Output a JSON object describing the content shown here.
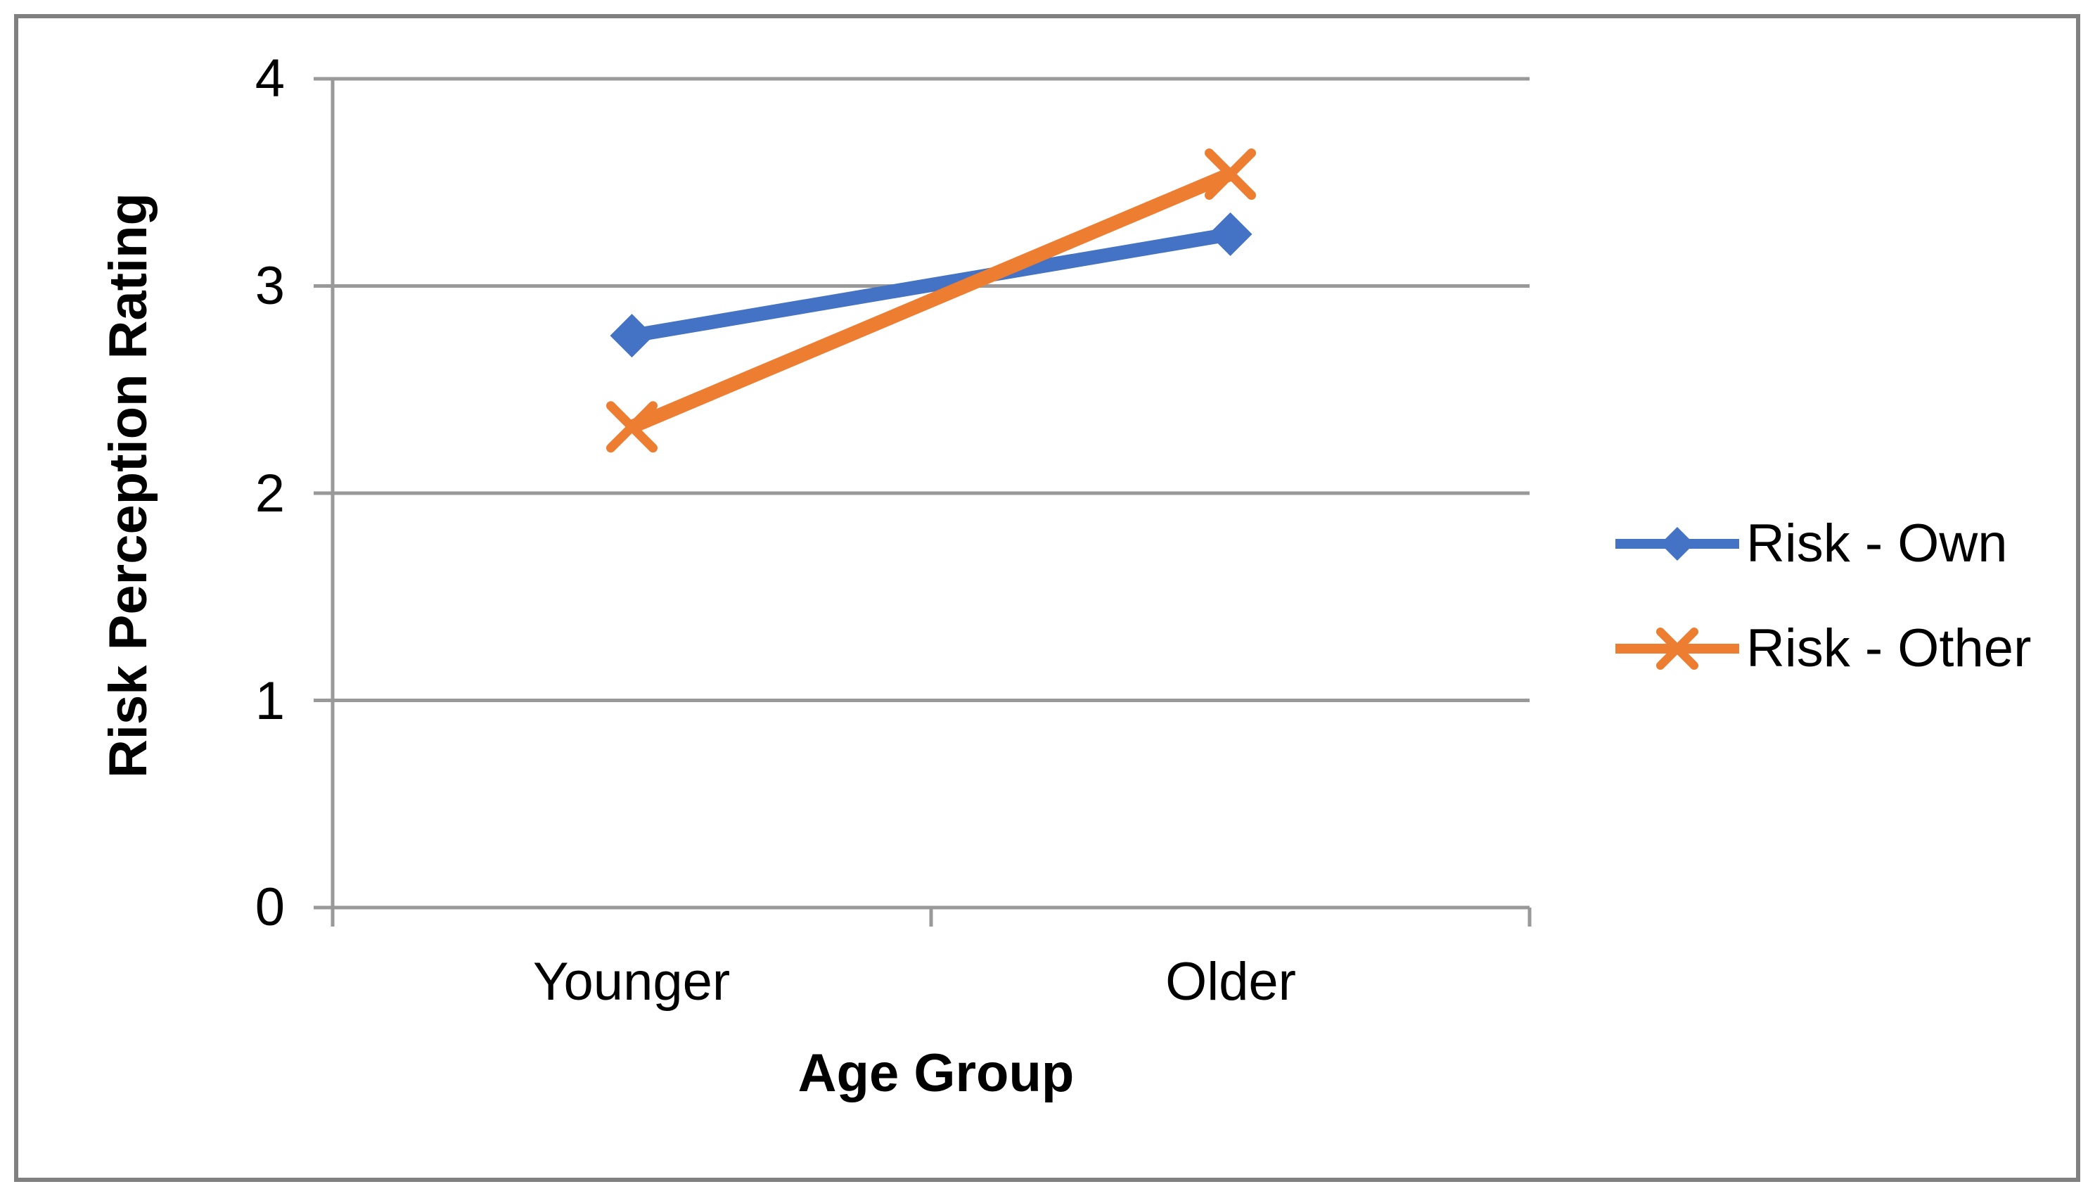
{
  "chart_data": {
    "type": "line",
    "categories": [
      "Younger",
      "Older"
    ],
    "series": [
      {
        "name": "Risk - Own",
        "values": [
          2.76,
          3.25
        ],
        "color": "#4472C4",
        "marker": "diamond"
      },
      {
        "name": "Risk - Other",
        "values": [
          2.32,
          3.54
        ],
        "color": "#ED7D31",
        "marker": "x"
      }
    ],
    "title": "",
    "xlabel": "Age Group",
    "ylabel": "Risk Perception Rating",
    "ylim": [
      0,
      4
    ],
    "yticks": [
      4,
      3,
      2,
      1,
      0
    ],
    "grid": "horizontal-only",
    "legend_position": "right-middle"
  },
  "colors": {
    "gridline": "#999999",
    "axis": "#999999",
    "border": "#808080",
    "text": "#000000"
  }
}
